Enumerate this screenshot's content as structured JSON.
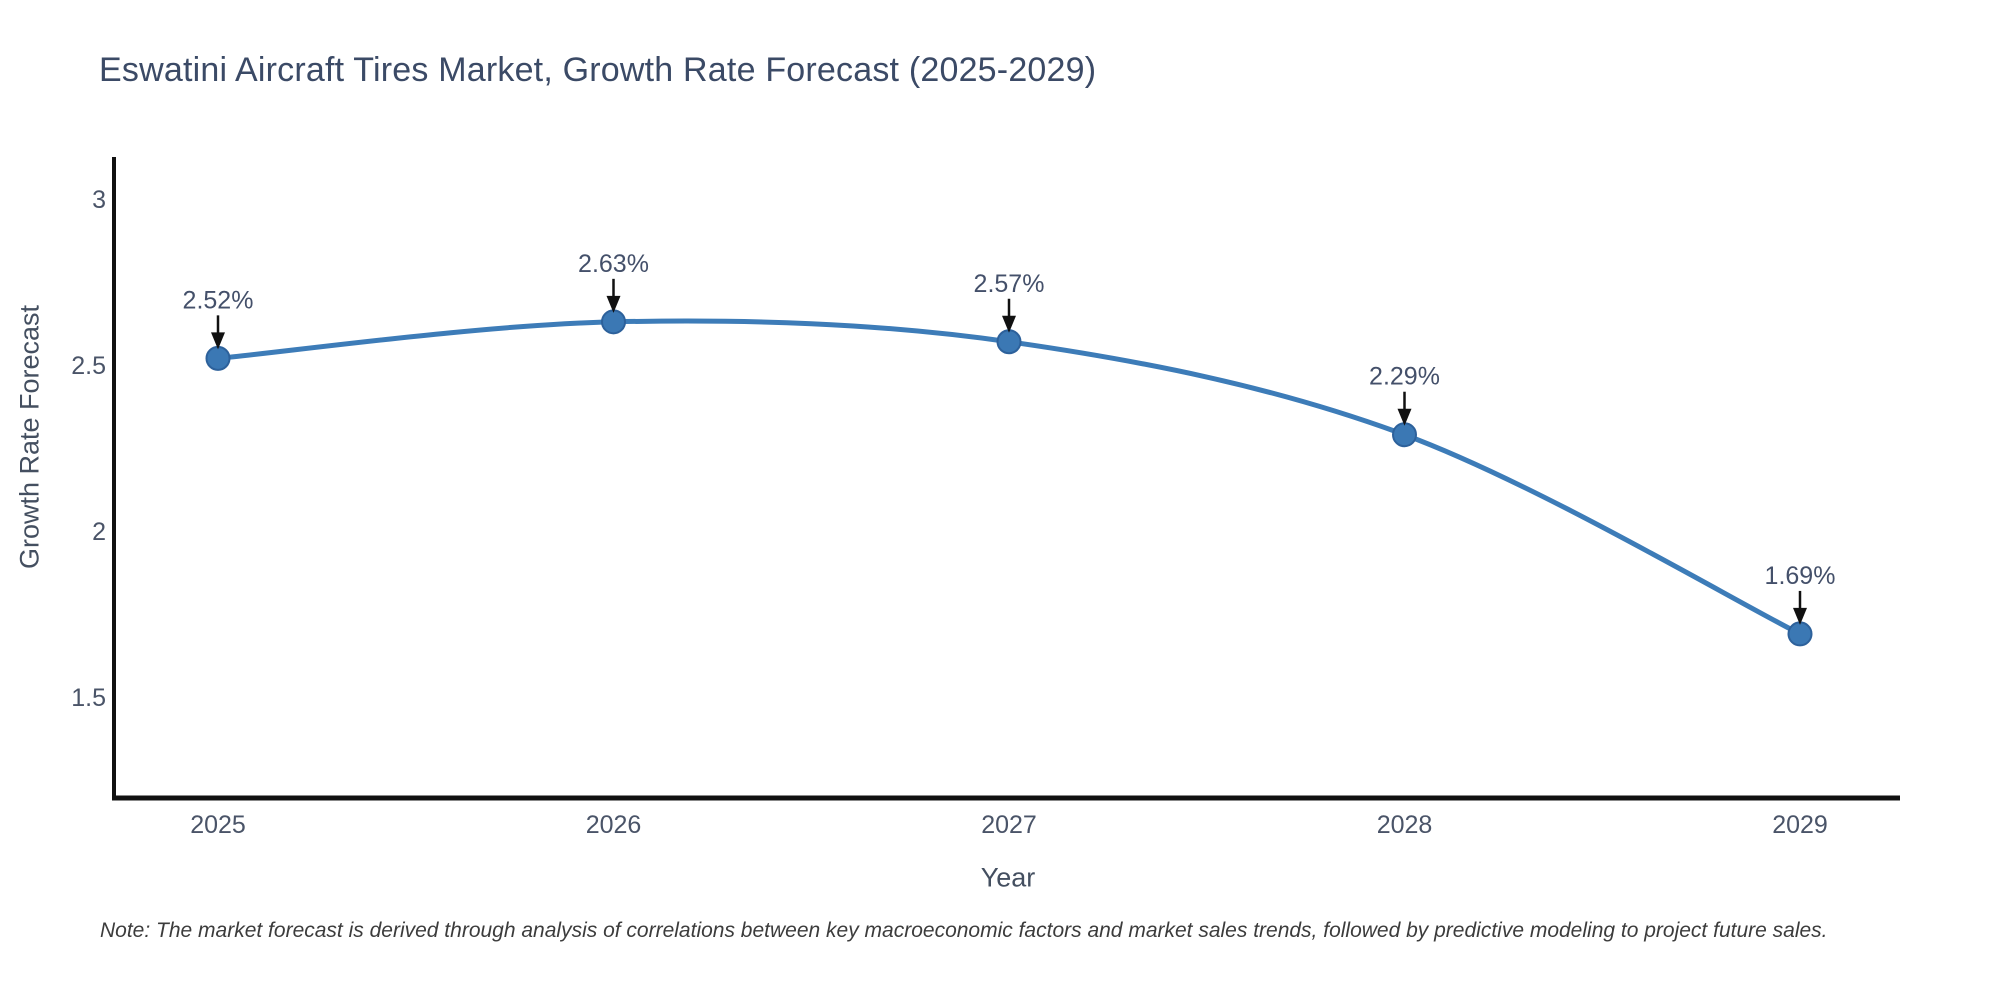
{
  "page": {
    "background_color": "#ffffff"
  },
  "chart_data": {
    "type": "line",
    "title": "Eswatini Aircraft Tires Market, Growth Rate Forecast (2025-2029)",
    "xlabel": "Year",
    "ylabel": "Growth Rate Forecast",
    "x": [
      2025,
      2026,
      2027,
      2028,
      2029
    ],
    "series": [
      {
        "name": "Growth Rate Forecast",
        "values": [
          2.52,
          2.63,
          2.57,
          2.29,
          1.69
        ]
      }
    ],
    "point_labels": [
      "2.52%",
      "2.63%",
      "2.57%",
      "2.29%",
      "1.69%"
    ],
    "xtick_labels": [
      "2025",
      "2026",
      "2027",
      "2028",
      "2029"
    ],
    "ytick_values": [
      3,
      2.5,
      2,
      1.5
    ],
    "ytick_labels": [
      "3",
      "2.5",
      "2",
      "1.5"
    ],
    "ylim": [
      1.2,
      3.13
    ],
    "grid": false,
    "legend": "none",
    "line_shape": "spline",
    "colors": {
      "line": "#3d7cb8",
      "marker_fill": "#3b78b4",
      "marker_edge": "#2d619b",
      "axis_line": "#111111",
      "annotation_arrow": "#111111",
      "annotation_text": "#44506a",
      "tick_text": "#4a5468",
      "title_text": "#3b4a66"
    }
  },
  "note": {
    "text": "Note: The market forecast is derived through analysis of correlations between key macroeconomic factors and market sales trends, followed by predictive modeling to project future sales."
  }
}
